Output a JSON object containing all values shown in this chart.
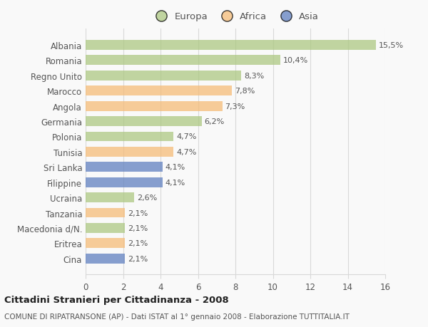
{
  "categories": [
    "Albania",
    "Romania",
    "Regno Unito",
    "Marocco",
    "Angola",
    "Germania",
    "Polonia",
    "Tunisia",
    "Sri Lanka",
    "Filippine",
    "Ucraina",
    "Tanzania",
    "Macedonia d/N.",
    "Eritrea",
    "Cina"
  ],
  "values": [
    15.5,
    10.4,
    8.3,
    7.8,
    7.3,
    6.2,
    4.7,
    4.7,
    4.1,
    4.1,
    2.6,
    2.1,
    2.1,
    2.1,
    2.1
  ],
  "labels": [
    "15,5%",
    "10,4%",
    "8,3%",
    "7,8%",
    "7,3%",
    "6,2%",
    "4,7%",
    "4,7%",
    "4,1%",
    "4,1%",
    "2,6%",
    "2,1%",
    "2,1%",
    "2,1%",
    "2,1%"
  ],
  "continents": [
    "Europa",
    "Europa",
    "Europa",
    "Africa",
    "Africa",
    "Europa",
    "Europa",
    "Africa",
    "Asia",
    "Asia",
    "Europa",
    "Africa",
    "Europa",
    "Africa",
    "Asia"
  ],
  "colors": {
    "Europa": "#adc882",
    "Africa": "#f5bc78",
    "Asia": "#6080c0"
  },
  "xlim": [
    0,
    16
  ],
  "xticks": [
    0,
    2,
    4,
    6,
    8,
    10,
    12,
    14,
    16
  ],
  "title": "Cittadini Stranieri per Cittadinanza - 2008",
  "subtitle": "COMUNE DI RIPATRANSONE (AP) - Dati ISTAT al 1° gennaio 2008 - Elaborazione TUTTITALIA.IT",
  "background_color": "#f9f9f9",
  "grid_color": "#d8d8d8",
  "bar_alpha": 0.75
}
